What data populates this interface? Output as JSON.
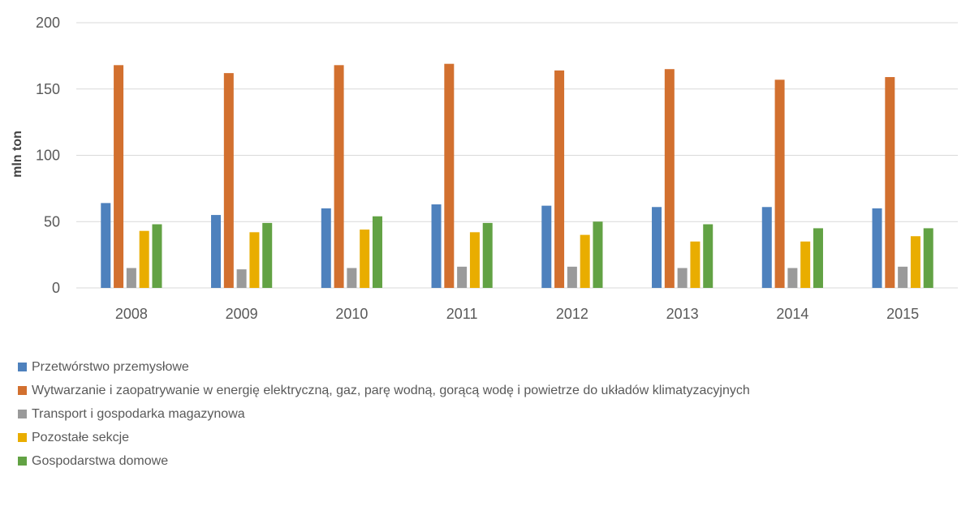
{
  "chart_data": {
    "type": "bar",
    "ylabel": "mln ton",
    "xlabel": "",
    "ylim": [
      0,
      200
    ],
    "yticks": [
      0,
      50,
      100,
      150,
      200
    ],
    "grid": true,
    "legend_position": "bottom-left",
    "categories": [
      "2008",
      "2009",
      "2010",
      "2011",
      "2012",
      "2013",
      "2014",
      "2015"
    ],
    "series": [
      {
        "name": "Przetwórstwo przemysłowe",
        "color": "#4e81bd",
        "values": [
          64,
          55,
          60,
          63,
          62,
          61,
          61,
          60
        ]
      },
      {
        "name": "Wytwarzanie i zaopatrywanie w energię elektryczną, gaz, parę wodną, gorącą wodę i powietrze do układów klimatyzacyjnych",
        "color": "#d2702f",
        "values": [
          168,
          162,
          168,
          169,
          164,
          165,
          157,
          159
        ]
      },
      {
        "name": "Transport i gospodarka magazynowa",
        "color": "#9a9a9a",
        "values": [
          15,
          14,
          15,
          16,
          16,
          15,
          15,
          16
        ]
      },
      {
        "name": "Pozostałe sekcje",
        "color": "#e9ad00",
        "values": [
          43,
          42,
          44,
          42,
          40,
          35,
          35,
          39
        ]
      },
      {
        "name": "Gospodarstwa domowe",
        "color": "#62a244",
        "values": [
          48,
          49,
          54,
          49,
          50,
          48,
          45,
          45
        ]
      }
    ]
  }
}
